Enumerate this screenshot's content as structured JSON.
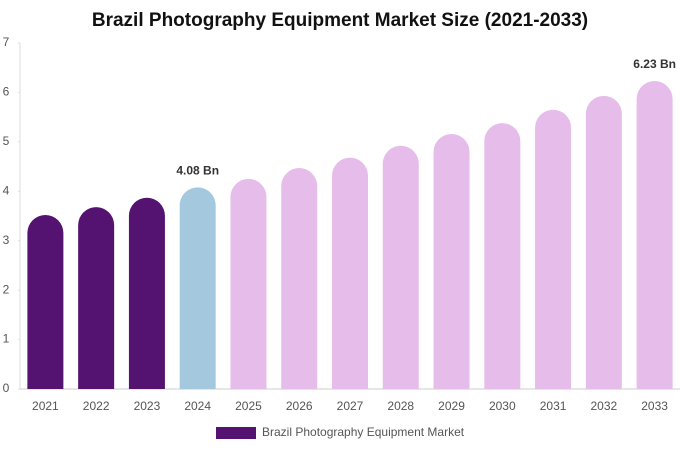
{
  "chart_data": {
    "type": "bar",
    "title": "Brazil Photography Equipment Market Size (2021-2033)",
    "categories": [
      "2021",
      "2022",
      "2023",
      "2024",
      "2025",
      "2026",
      "2027",
      "2028",
      "2029",
      "2030",
      "2031",
      "2032",
      "2033"
    ],
    "series": [
      {
        "name": "Brazil Photography Equipment Market",
        "color": "#541370",
        "colors": [
          "#541370",
          "#541370",
          "#541370",
          "#a4c9de",
          "#e6bdea",
          "#e6bdea",
          "#e6bdea",
          "#e6bdea",
          "#e6bdea",
          "#e6bdea",
          "#e6bdea",
          "#e6bdea",
          "#e6bdea"
        ],
        "values": [
          3.52,
          3.68,
          3.87,
          4.08,
          4.25,
          4.47,
          4.68,
          4.92,
          5.16,
          5.38,
          5.65,
          5.93,
          6.23
        ],
        "value_labels": [
          null,
          null,
          null,
          "4.08 Bn",
          null,
          null,
          null,
          null,
          null,
          null,
          null,
          null,
          "6.23 Bn"
        ]
      }
    ],
    "ylim": [
      0,
      7
    ],
    "yticks": [
      0,
      1,
      2,
      3,
      4,
      5,
      6,
      7
    ],
    "legend": "bottom"
  }
}
